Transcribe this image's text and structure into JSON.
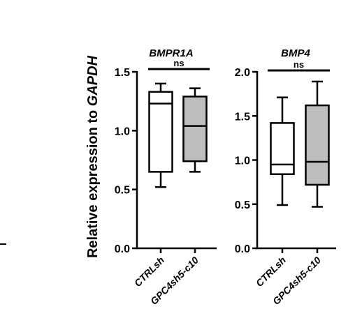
{
  "chart_data": [
    {
      "type": "box",
      "title": "BMPR1A",
      "ylabel_prefix": "Relative expression to ",
      "ylabel_gene": "GAPDH",
      "ylim": [
        0,
        1.5
      ],
      "yticks": [
        "0.0",
        "0.5",
        "1.0",
        "1.5"
      ],
      "categories": [
        "CTRLsh",
        "GPC4sh5-c10"
      ],
      "boxes": [
        {
          "min": 0.52,
          "q1": 0.65,
          "median": 1.23,
          "q3": 1.33,
          "max": 1.4,
          "fill": "#ffffff"
        },
        {
          "min": 0.65,
          "q1": 0.74,
          "median": 1.04,
          "q3": 1.29,
          "max": 1.36,
          "fill": "#bebebe"
        }
      ],
      "significance": "ns"
    },
    {
      "type": "box",
      "title": "BMP4",
      "ylim": [
        0,
        2.0
      ],
      "yticks": [
        "0.0",
        "0.5",
        "1.0",
        "1.5",
        "2.0"
      ],
      "categories": [
        "CTRLsh",
        "GPC4sh5-c10"
      ],
      "boxes": [
        {
          "min": 0.49,
          "q1": 0.84,
          "median": 0.95,
          "q3": 1.42,
          "max": 1.71,
          "fill": "#ffffff"
        },
        {
          "min": 0.47,
          "q1": 0.72,
          "median": 0.98,
          "q3": 1.62,
          "max": 1.89,
          "fill": "#bebebe"
        }
      ],
      "significance": "ns"
    }
  ]
}
